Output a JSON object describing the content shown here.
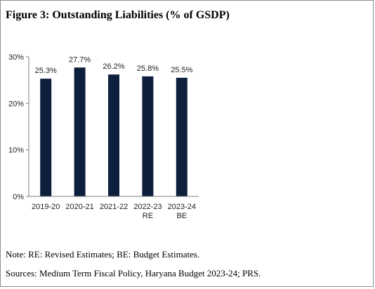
{
  "figure_title": "Figure 3: Outstanding Liabilities (% of GSDP)",
  "note": "Note: RE: Revised Estimates; BE: Budget Estimates.",
  "sources": "Sources: Medium Term Fiscal Policy, Haryana Budget 2023-24; PRS.",
  "colors": {
    "bar": "#0e1f3d",
    "axis": "#808080"
  },
  "chart_data": {
    "type": "bar",
    "title": "Figure 3: Outstanding Liabilities (% of GSDP)",
    "xlabel": "",
    "ylabel": "",
    "categories": [
      [
        "2019-20"
      ],
      [
        "2020-21"
      ],
      [
        "2021-22"
      ],
      [
        "2022-23",
        "RE"
      ],
      [
        "2023-24",
        "BE"
      ]
    ],
    "values": [
      25.3,
      27.7,
      26.2,
      25.8,
      25.5
    ],
    "data_labels": [
      "25.3%",
      "27.7%",
      "26.2%",
      "25.8%",
      "25.5%"
    ],
    "ylim": [
      0,
      30
    ],
    "yticks": [
      0,
      10,
      20,
      30
    ],
    "ytick_labels": [
      "0%",
      "10%",
      "20%",
      "30%"
    ],
    "grid": false,
    "legend": "none"
  }
}
